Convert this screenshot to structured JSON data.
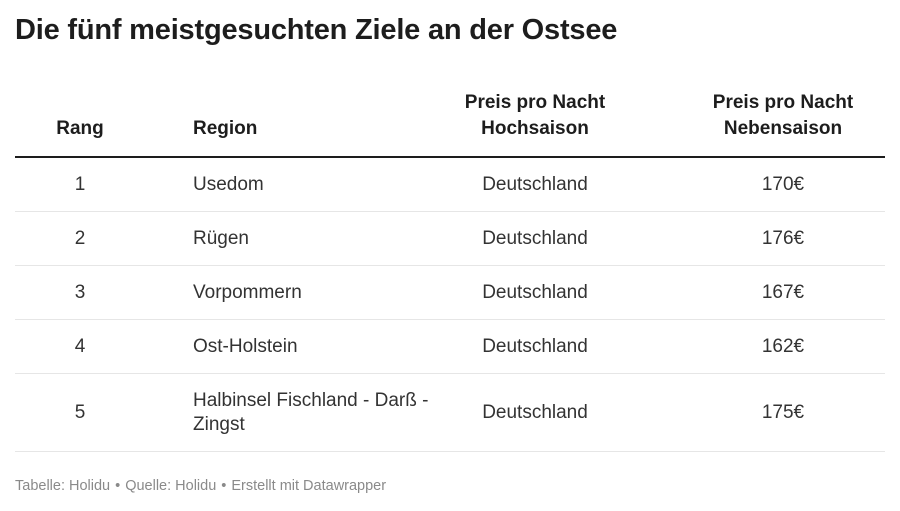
{
  "title": "Die fünf meistgesuchten Ziele an der Ostsee",
  "table": {
    "headers": {
      "rank": "Rang",
      "region": "Region",
      "high_line1": "Preis pro Nacht",
      "high_line2": "Hochsaison",
      "low_line1": "Preis pro Nacht",
      "low_line2": "Nebensaison"
    },
    "rows": [
      {
        "rank": "1",
        "region": "Usedom",
        "high": "Deutschland",
        "low": "170€"
      },
      {
        "rank": "2",
        "region": "Rügen",
        "high": "Deutschland",
        "low": "176€"
      },
      {
        "rank": "3",
        "region": "Vorpommern",
        "high": "Deutschland",
        "low": "167€"
      },
      {
        "rank": "4",
        "region": "Ost-Holstein",
        "high": "Deutschland",
        "low": "162€"
      },
      {
        "rank": "5",
        "region": "Halbinsel Fischland - Darß - Zingst",
        "high": "Deutschland",
        "low": "175€"
      }
    ]
  },
  "footer": {
    "table_credit": "Tabelle: Holidu",
    "source": "Quelle: Holidu",
    "made_with": "Erstellt mit Datawrapper",
    "separator": "•"
  }
}
